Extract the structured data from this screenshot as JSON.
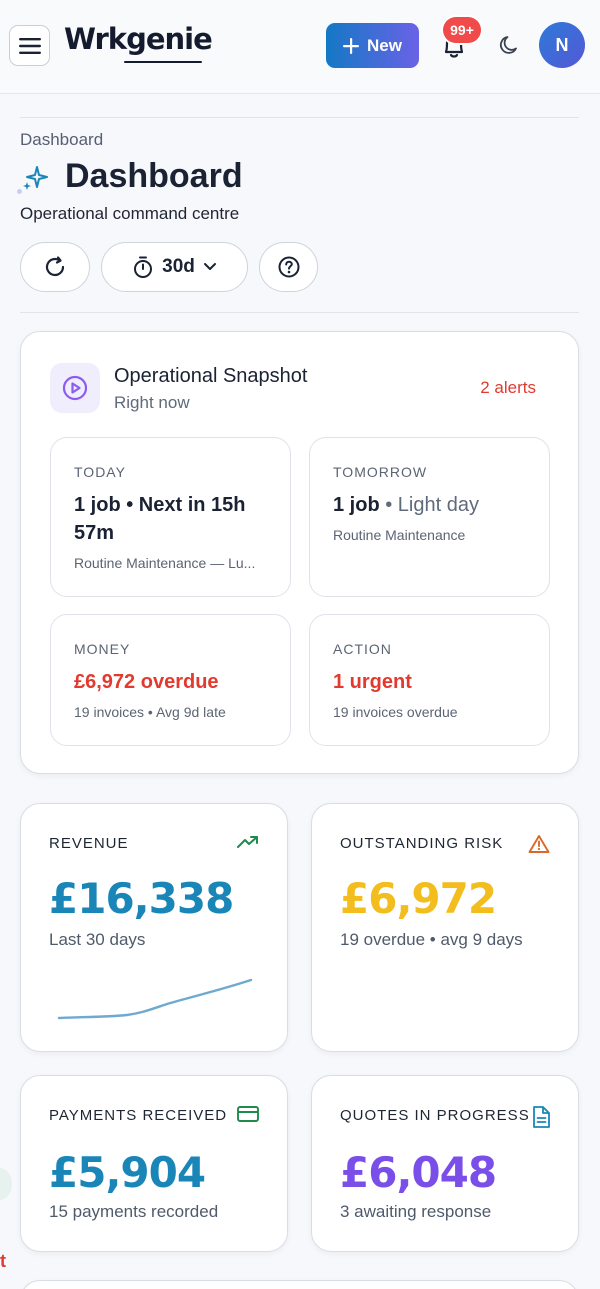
{
  "header": {
    "logo": "Wrkgenie",
    "new_label": "New",
    "notif_badge": "99+",
    "avatar_initial": "N"
  },
  "page": {
    "breadcrumb": "Dashboard",
    "title": "Dashboard",
    "subtitle": "Operational command centre",
    "range_label": "30d"
  },
  "snapshot": {
    "title": "Operational Snapshot",
    "subtitle": "Right now",
    "alerts": "2 alerts",
    "today": {
      "label": "TODAY",
      "main": "1 job • Next in 15h 57m",
      "note": "Routine Maintenance — Lu..."
    },
    "tomorrow": {
      "label": "TOMORROW",
      "main": "1 job",
      "main_muted": "• Light day",
      "note": "Routine Maintenance"
    },
    "money": {
      "label": "MONEY",
      "main": "£6,972 overdue",
      "note": "19 invoices • Avg 9d late"
    },
    "action": {
      "label": "ACTION",
      "main": "1 urgent",
      "note": "19 invoices overdue"
    }
  },
  "kpis": {
    "revenue": {
      "label": "REVENUE",
      "value": "£16,338",
      "note": "Last 30 days",
      "color": "#1a86b8",
      "icon": "trending-up-icon"
    },
    "risk": {
      "label": "OUTSTANDING RISK",
      "value": "£6,972",
      "note": "19 overdue • avg 9 days",
      "color": "#f2bd1d",
      "icon": "warning-icon"
    },
    "payments": {
      "label": "PAYMENTS RECEIVED",
      "value": "£5,904",
      "note": "15 payments recorded",
      "color": "#1a86b8",
      "icon": "credit-card-icon"
    },
    "quotes": {
      "label": "QUOTES IN PROGRESS",
      "value": "£6,048",
      "note": "3 awaiting response",
      "color": "#7a4ee8",
      "icon": "document-icon"
    }
  },
  "colors": {
    "alert_red": "#e23a2f",
    "accent_gradient_start": "#1478c5",
    "accent_gradient_end": "#6a62e6"
  }
}
